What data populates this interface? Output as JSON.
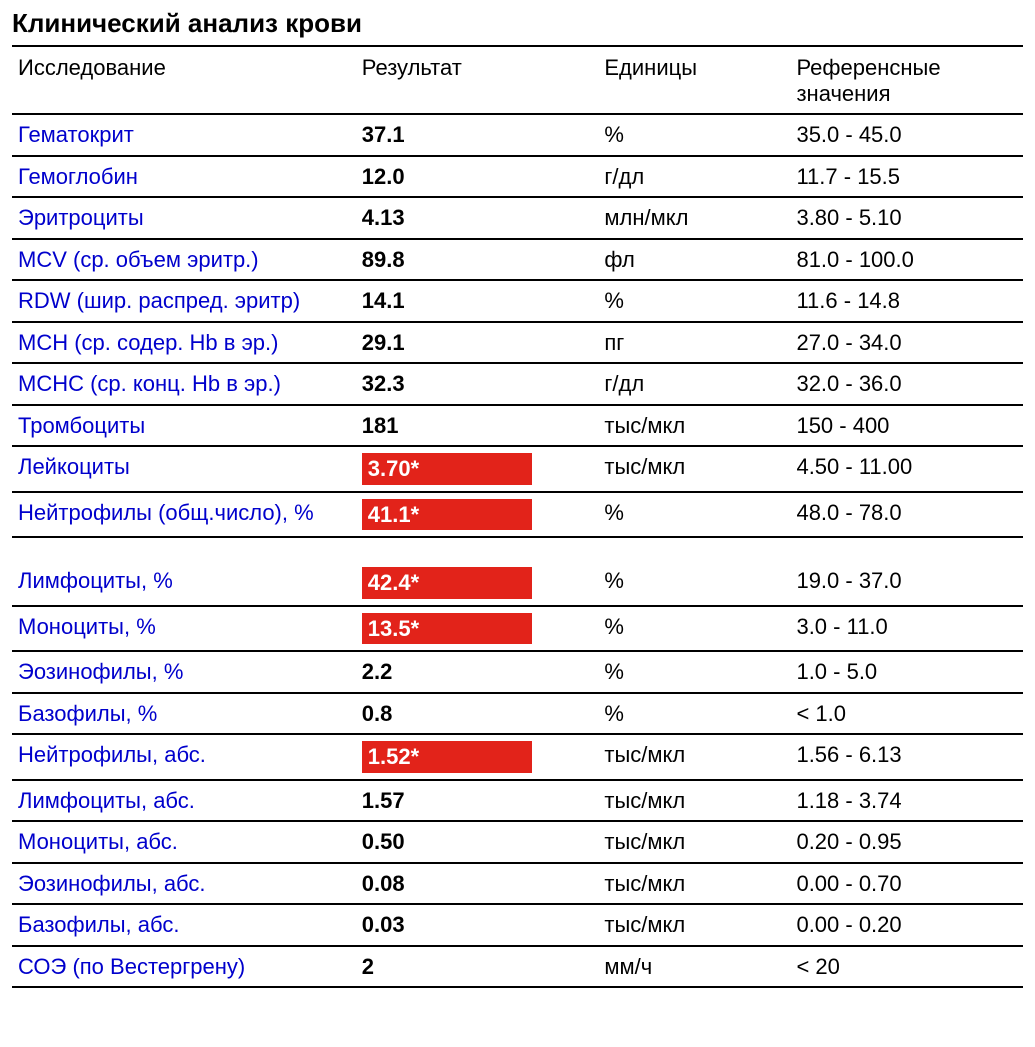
{
  "title": "Клинический анализ крови",
  "columns": {
    "test": "Исследование",
    "result": "Результат",
    "units": "Единицы",
    "ref": "Референсные значения"
  },
  "colors": {
    "link": "#0000cc",
    "flag_bg": "#e2231a",
    "flag_text": "#ffffff",
    "border": "#000000",
    "text": "#000000",
    "background": "#ffffff"
  },
  "font_sizes_pt": {
    "title": 20,
    "body": 16
  },
  "rows": [
    {
      "test": "Гематокрит",
      "result": "37.1",
      "flagged": false,
      "units": "%",
      "ref": "35.0 - 45.0"
    },
    {
      "test": "Гемоглобин",
      "result": "12.0",
      "flagged": false,
      "units": "г/дл",
      "ref": "11.7 - 15.5"
    },
    {
      "test": "Эритроциты",
      "result": "4.13",
      "flagged": false,
      "units": "млн/мкл",
      "ref": "3.80 - 5.10"
    },
    {
      "test": "MCV (ср. объем эритр.)",
      "result": "89.8",
      "flagged": false,
      "units": "фл",
      "ref": "81.0 - 100.0"
    },
    {
      "test": "RDW (шир. распред. эритр)",
      "result": "14.1",
      "flagged": false,
      "units": "%",
      "ref": "11.6 - 14.8"
    },
    {
      "test": "MCH (ср. содер. Hb в эр.)",
      "result": "29.1",
      "flagged": false,
      "units": "пг",
      "ref": "27.0 - 34.0"
    },
    {
      "test": "MCHC (ср. конц. Hb в эр.)",
      "result": "32.3",
      "flagged": false,
      "units": "г/дл",
      "ref": "32.0 - 36.0"
    },
    {
      "test": "Тромбоциты",
      "result": "181",
      "flagged": false,
      "units": "тыс/мкл",
      "ref": "150 - 400"
    },
    {
      "test": "Лейкоциты",
      "result": "3.70*",
      "flagged": true,
      "units": "тыс/мкл",
      "ref": "4.50 - 11.00"
    },
    {
      "test": "Нейтрофилы (общ.число), %",
      "result": "41.1*",
      "flagged": true,
      "units": "%",
      "ref": "48.0 - 78.0"
    },
    {
      "test": "Лимфоциты, %",
      "result": "42.4*",
      "flagged": true,
      "units": "%",
      "ref": "19.0 - 37.0"
    },
    {
      "test": "Моноциты, %",
      "result": "13.5*",
      "flagged": true,
      "units": "%",
      "ref": "3.0 - 11.0"
    },
    {
      "test": "Эозинофилы, %",
      "result": "2.2",
      "flagged": false,
      "units": "%",
      "ref": "1.0 - 5.0"
    },
    {
      "test": "Базофилы, %",
      "result": "0.8",
      "flagged": false,
      "units": "%",
      "ref": "< 1.0"
    },
    {
      "test": "Нейтрофилы, абс.",
      "result": "1.52*",
      "flagged": true,
      "units": "тыс/мкл",
      "ref": "1.56 - 6.13"
    },
    {
      "test": "Лимфоциты, абс.",
      "result": "1.57",
      "flagged": false,
      "units": "тыс/мкл",
      "ref": "1.18 - 3.74"
    },
    {
      "test": "Моноциты, абс.",
      "result": "0.50",
      "flagged": false,
      "units": "тыс/мкл",
      "ref": "0.20 - 0.95"
    },
    {
      "test": "Эозинофилы, абс.",
      "result": "0.08",
      "flagged": false,
      "units": "тыс/мкл",
      "ref": "0.00 - 0.70"
    },
    {
      "test": "Базофилы, абс.",
      "result": "0.03",
      "flagged": false,
      "units": "тыс/мкл",
      "ref": "0.00 - 0.20"
    },
    {
      "test": "СОЭ (по Вестергрену)",
      "result": "2",
      "flagged": false,
      "units": "мм/ч",
      "ref": "< 20"
    }
  ],
  "gap_after_index": 9
}
